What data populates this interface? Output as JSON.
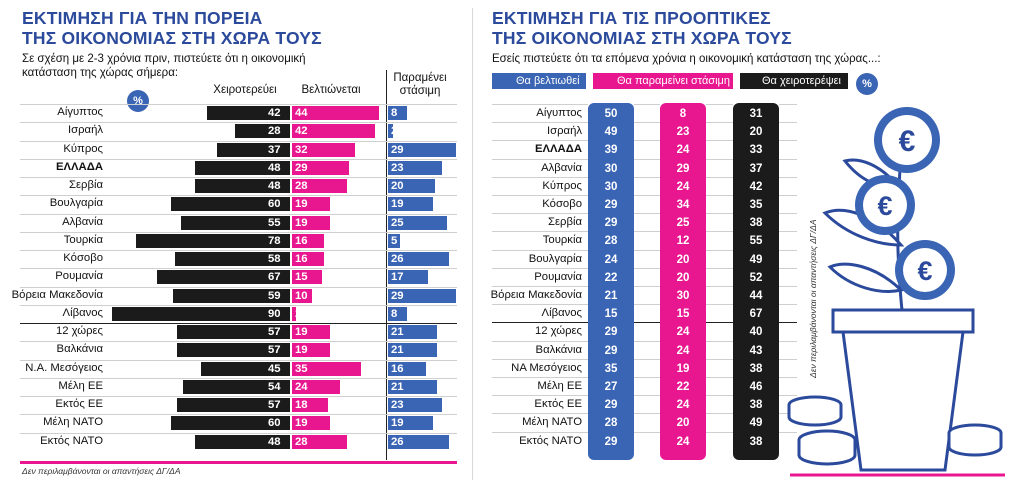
{
  "left": {
    "title_line1": "ΕΚΤΙΜΗΣΗ ΓΙΑ ΤΗΝ ΠΟΡΕΙΑ",
    "title_line2": "ΤΗΣ ΟΙΚΟΝΟΜΙΑΣ ΣΤΗ ΧΩΡΑ ΤΟΥΣ",
    "subtitle_line1": "Σε σχέση με 2-3 χρόνια πριν, πιστεύετε ότι η οικονομική",
    "subtitle_line2": "κατάσταση της χώρας σήμερα:",
    "pct_badge": "%",
    "col_worse": "Χειροτερεύει",
    "col_better": "Βελτιώνεται",
    "col_stable_line1": "Παραμένει",
    "col_stable_line2": "στάσιμη",
    "note": "Δεν περιλαμβάνονται οι απαντήσεις ΔΓ/ΔΑ",
    "colors": {
      "worse": "#1b1b1b",
      "better": "#e8168f",
      "stable": "#3a64b4"
    }
  },
  "right": {
    "title_line1": "ΕΚΤΙΜΗΣΗ ΓΙΑ ΤΙΣ ΠΡΟΟΠΤΙΚΕΣ",
    "title_line2": "ΤΗΣ ΟΙΚΟΝΟΜΙΑΣ ΣΤΗ ΧΩΡΑ ΤΟΥΣ",
    "subtitle": "Εσείς πιστεύετε ότι τα επόμενα χρόνια η οικονομική κατάσταση της χώρας...:",
    "legend_improve": "Θα βελτιωθεί",
    "legend_stable": "Θα παραμείνει στάσιμη",
    "legend_worse": "Θα χειροτερέψει",
    "pct_badge": "%",
    "note": "Δεν περιλαμβάνονται οι απαντήσεις ΔΓ/ΔΑ",
    "colors": {
      "improve": "#3a64b4",
      "stable": "#e8168f",
      "worse": "#1b1b1b"
    }
  },
  "chart_data": [
    {
      "type": "bar",
      "title": "ΕΚΤΙΜΗΣΗ ΓΙΑ ΤΗΝ ΠΟΡΕΙΑ ΤΗΣ ΟΙΚΟΝΟΜΙΑΣ ΣΤΗ ΧΩΡΑ ΤΟΥΣ",
      "categories": [
        "Αίγυπτος",
        "Ισραήλ",
        "Κύπρος",
        "ΕΛΛΑΔΑ",
        "Σερβία",
        "Βουλγαρία",
        "Αλβανία",
        "Τουρκία",
        "Κόσοβο",
        "Ρουμανία",
        "Βόρεια Μακεδονία",
        "Λίβανος",
        "12 χώρες",
        "Βαλκάνια",
        "Ν.Α. Μεσόγειος",
        "Μέλη ΕΕ",
        "Εκτός ΕΕ",
        "Μέλη ΝΑΤΟ",
        "Εκτός ΝΑΤΟ"
      ],
      "series": [
        {
          "name": "Χειροτερεύει",
          "values": [
            42,
            28,
            37,
            48,
            48,
            60,
            55,
            78,
            58,
            67,
            59,
            90,
            57,
            57,
            45,
            54,
            57,
            60,
            48
          ]
        },
        {
          "name": "Βελτιώνεται",
          "values": [
            44,
            42,
            32,
            29,
            28,
            19,
            19,
            16,
            16,
            15,
            10,
            2,
            19,
            19,
            35,
            24,
            18,
            19,
            28
          ]
        },
        {
          "name": "Παραμένει στάσιμη",
          "values": [
            8,
            2,
            29,
            23,
            20,
            19,
            25,
            5,
            26,
            17,
            29,
            8,
            21,
            21,
            16,
            21,
            23,
            19,
            26
          ]
        }
      ],
      "xlabel": "",
      "ylabel": "%"
    },
    {
      "type": "table",
      "title": "ΕΚΤΙΜΗΣΗ ΓΙΑ ΤΙΣ ΠΡΟΟΠΤΙΚΕΣ ΤΗΣ ΟΙΚΟΝΟΜΙΑΣ ΣΤΗ ΧΩΡΑ ΤΟΥΣ",
      "categories": [
        "Αίγυπτος",
        "Ισραήλ",
        "ΕΛΛΑΔΑ",
        "Αλβανία",
        "Κύπρος",
        "Κόσοβο",
        "Σερβία",
        "Τουρκία",
        "Βουλγαρία",
        "Ρουμανία",
        "Βόρεια Μακεδονία",
        "Λίβανος",
        "12 χώρες",
        "Βαλκάνια",
        "ΝΑ Μεσόγειος",
        "Μέλη ΕΕ",
        "Εκτός ΕΕ",
        "Μέλη ΝΑΤΟ",
        "Εκτός ΝΑΤΟ"
      ],
      "series": [
        {
          "name": "Θα βελτιωθεί",
          "values": [
            50,
            49,
            39,
            30,
            30,
            29,
            29,
            28,
            24,
            22,
            21,
            15,
            29,
            29,
            35,
            27,
            29,
            28,
            29
          ]
        },
        {
          "name": "Θα παραμείνει στάσιμη",
          "values": [
            8,
            23,
            24,
            29,
            24,
            34,
            25,
            12,
            20,
            20,
            30,
            15,
            24,
            24,
            19,
            22,
            24,
            20,
            24
          ]
        },
        {
          "name": "Θα χειροτερέψει",
          "values": [
            31,
            20,
            33,
            37,
            42,
            35,
            38,
            55,
            49,
            52,
            44,
            67,
            40,
            43,
            38,
            46,
            38,
            49,
            38
          ]
        }
      ],
      "ylabel": "%"
    }
  ]
}
